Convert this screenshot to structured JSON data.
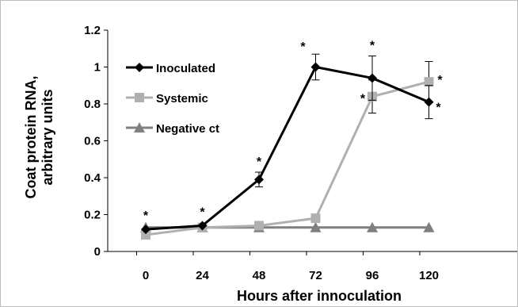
{
  "chart_data": {
    "type": "line",
    "xlabel": "Hours after innoculation",
    "ylabel_line1": "Coat protein RNA,",
    "ylabel_line2": "arbitrary units",
    "x": [
      0,
      24,
      48,
      72,
      96,
      120
    ],
    "x_tick_labels": [
      "0",
      "24",
      "48",
      "72",
      "96",
      "120"
    ],
    "y_ticks": [
      0,
      0.2,
      0.4,
      0.6,
      0.8,
      1,
      1.2
    ],
    "y_tick_labels": [
      "0",
      "0.2",
      "0.4",
      "0.6",
      "0.8",
      "1",
      "1.2"
    ],
    "ylim": [
      0,
      1.2
    ],
    "grid": false,
    "legend_position": "top-left",
    "series": [
      {
        "name": "Inoculated",
        "color": "#000000",
        "marker": "diamond",
        "values": [
          0.12,
          0.14,
          0.39,
          1.0,
          0.94,
          0.81
        ],
        "error": [
          0,
          0,
          0.04,
          0.07,
          0.12,
          0.09
        ],
        "stars": [
          "*",
          "*",
          "*",
          "*",
          "*",
          "*"
        ]
      },
      {
        "name": "Systemic",
        "color": "#b0b0b0",
        "marker": "square",
        "values": [
          0.09,
          0.13,
          0.14,
          0.18,
          0.84,
          0.92
        ],
        "error": [
          0,
          0,
          0,
          0,
          0.09,
          0.11
        ],
        "stars": [
          "",
          "",
          "",
          "",
          "*",
          "*"
        ]
      },
      {
        "name": "Negative ct",
        "color": "#7f7f7f",
        "marker": "triangle",
        "values": [
          0.13,
          0.13,
          0.13,
          0.13,
          0.13,
          0.13
        ],
        "error": [
          0,
          0,
          0,
          0,
          0,
          0
        ],
        "stars": [
          "",
          "",
          "",
          "",
          "",
          ""
        ]
      }
    ]
  }
}
